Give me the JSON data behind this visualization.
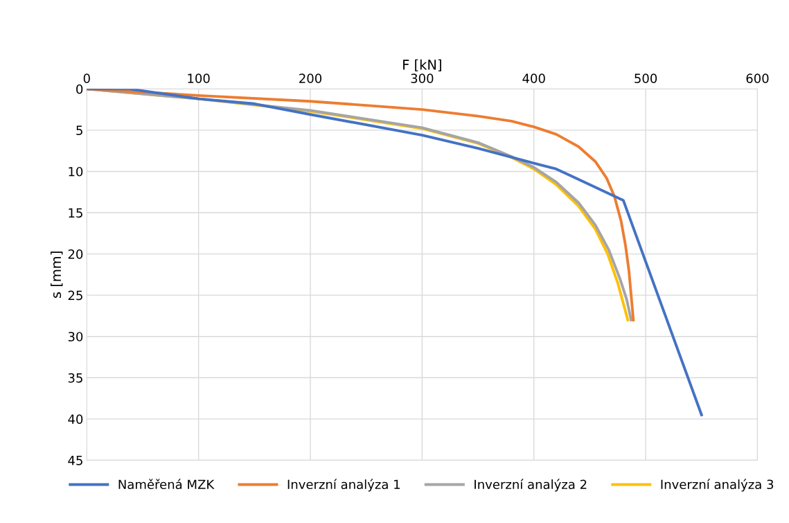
{
  "chart_data": {
    "type": "line",
    "xlabel": "F [kN]",
    "ylabel": "s [mm]",
    "xlim": [
      0,
      600
    ],
    "xticks": [
      0,
      100,
      200,
      300,
      400,
      500,
      600
    ],
    "ylim": [
      45,
      0
    ],
    "yticks": [
      0,
      5,
      10,
      15,
      20,
      25,
      30,
      35,
      40,
      45
    ],
    "grid": true,
    "legend": "bottom",
    "marker": "none",
    "line_style": "solid",
    "series": [
      {
        "name": "Naměřená MZK",
        "color": "#4472c4",
        "x": [
          0,
          38,
          100,
          150,
          200,
          300,
          350,
          400,
          420,
          480,
          550
        ],
        "values": [
          0,
          0,
          1.2,
          1.8,
          3.1,
          5.6,
          7.2,
          9,
          9.7,
          13.5,
          39.5
        ]
      },
      {
        "name": "Inverzní analýza 1",
        "color": "#ed7d31",
        "x": [
          0,
          100,
          200,
          250,
          300,
          350,
          380,
          400,
          420,
          440,
          455,
          465,
          472,
          478,
          482,
          485,
          487,
          489
        ],
        "values": [
          0,
          0.8,
          1.5,
          2,
          2.5,
          3.3,
          3.9,
          4.6,
          5.5,
          7,
          8.8,
          10.8,
          13,
          16,
          19,
          22,
          25,
          28
        ]
      },
      {
        "name": "Inverzní analýza 2",
        "color": "#a5a5a5",
        "x": [
          0,
          100,
          200,
          300,
          350,
          380,
          400,
          420,
          440,
          455,
          467,
          477,
          483,
          487
        ],
        "values": [
          0,
          1.2,
          2.6,
          4.7,
          6.5,
          8.2,
          9.5,
          11.3,
          13.8,
          16.5,
          19.5,
          23,
          25.5,
          28
        ]
      },
      {
        "name": "Inverzní analýza 3",
        "color": "#ffc000",
        "x": [
          0,
          100,
          200,
          300,
          350,
          380,
          400,
          420,
          440,
          455,
          466,
          475,
          480,
          484
        ],
        "values": [
          0,
          1.2,
          2.7,
          4.8,
          6.6,
          8.3,
          9.7,
          11.6,
          14.2,
          17,
          20,
          23.5,
          26,
          28
        ]
      }
    ]
  }
}
